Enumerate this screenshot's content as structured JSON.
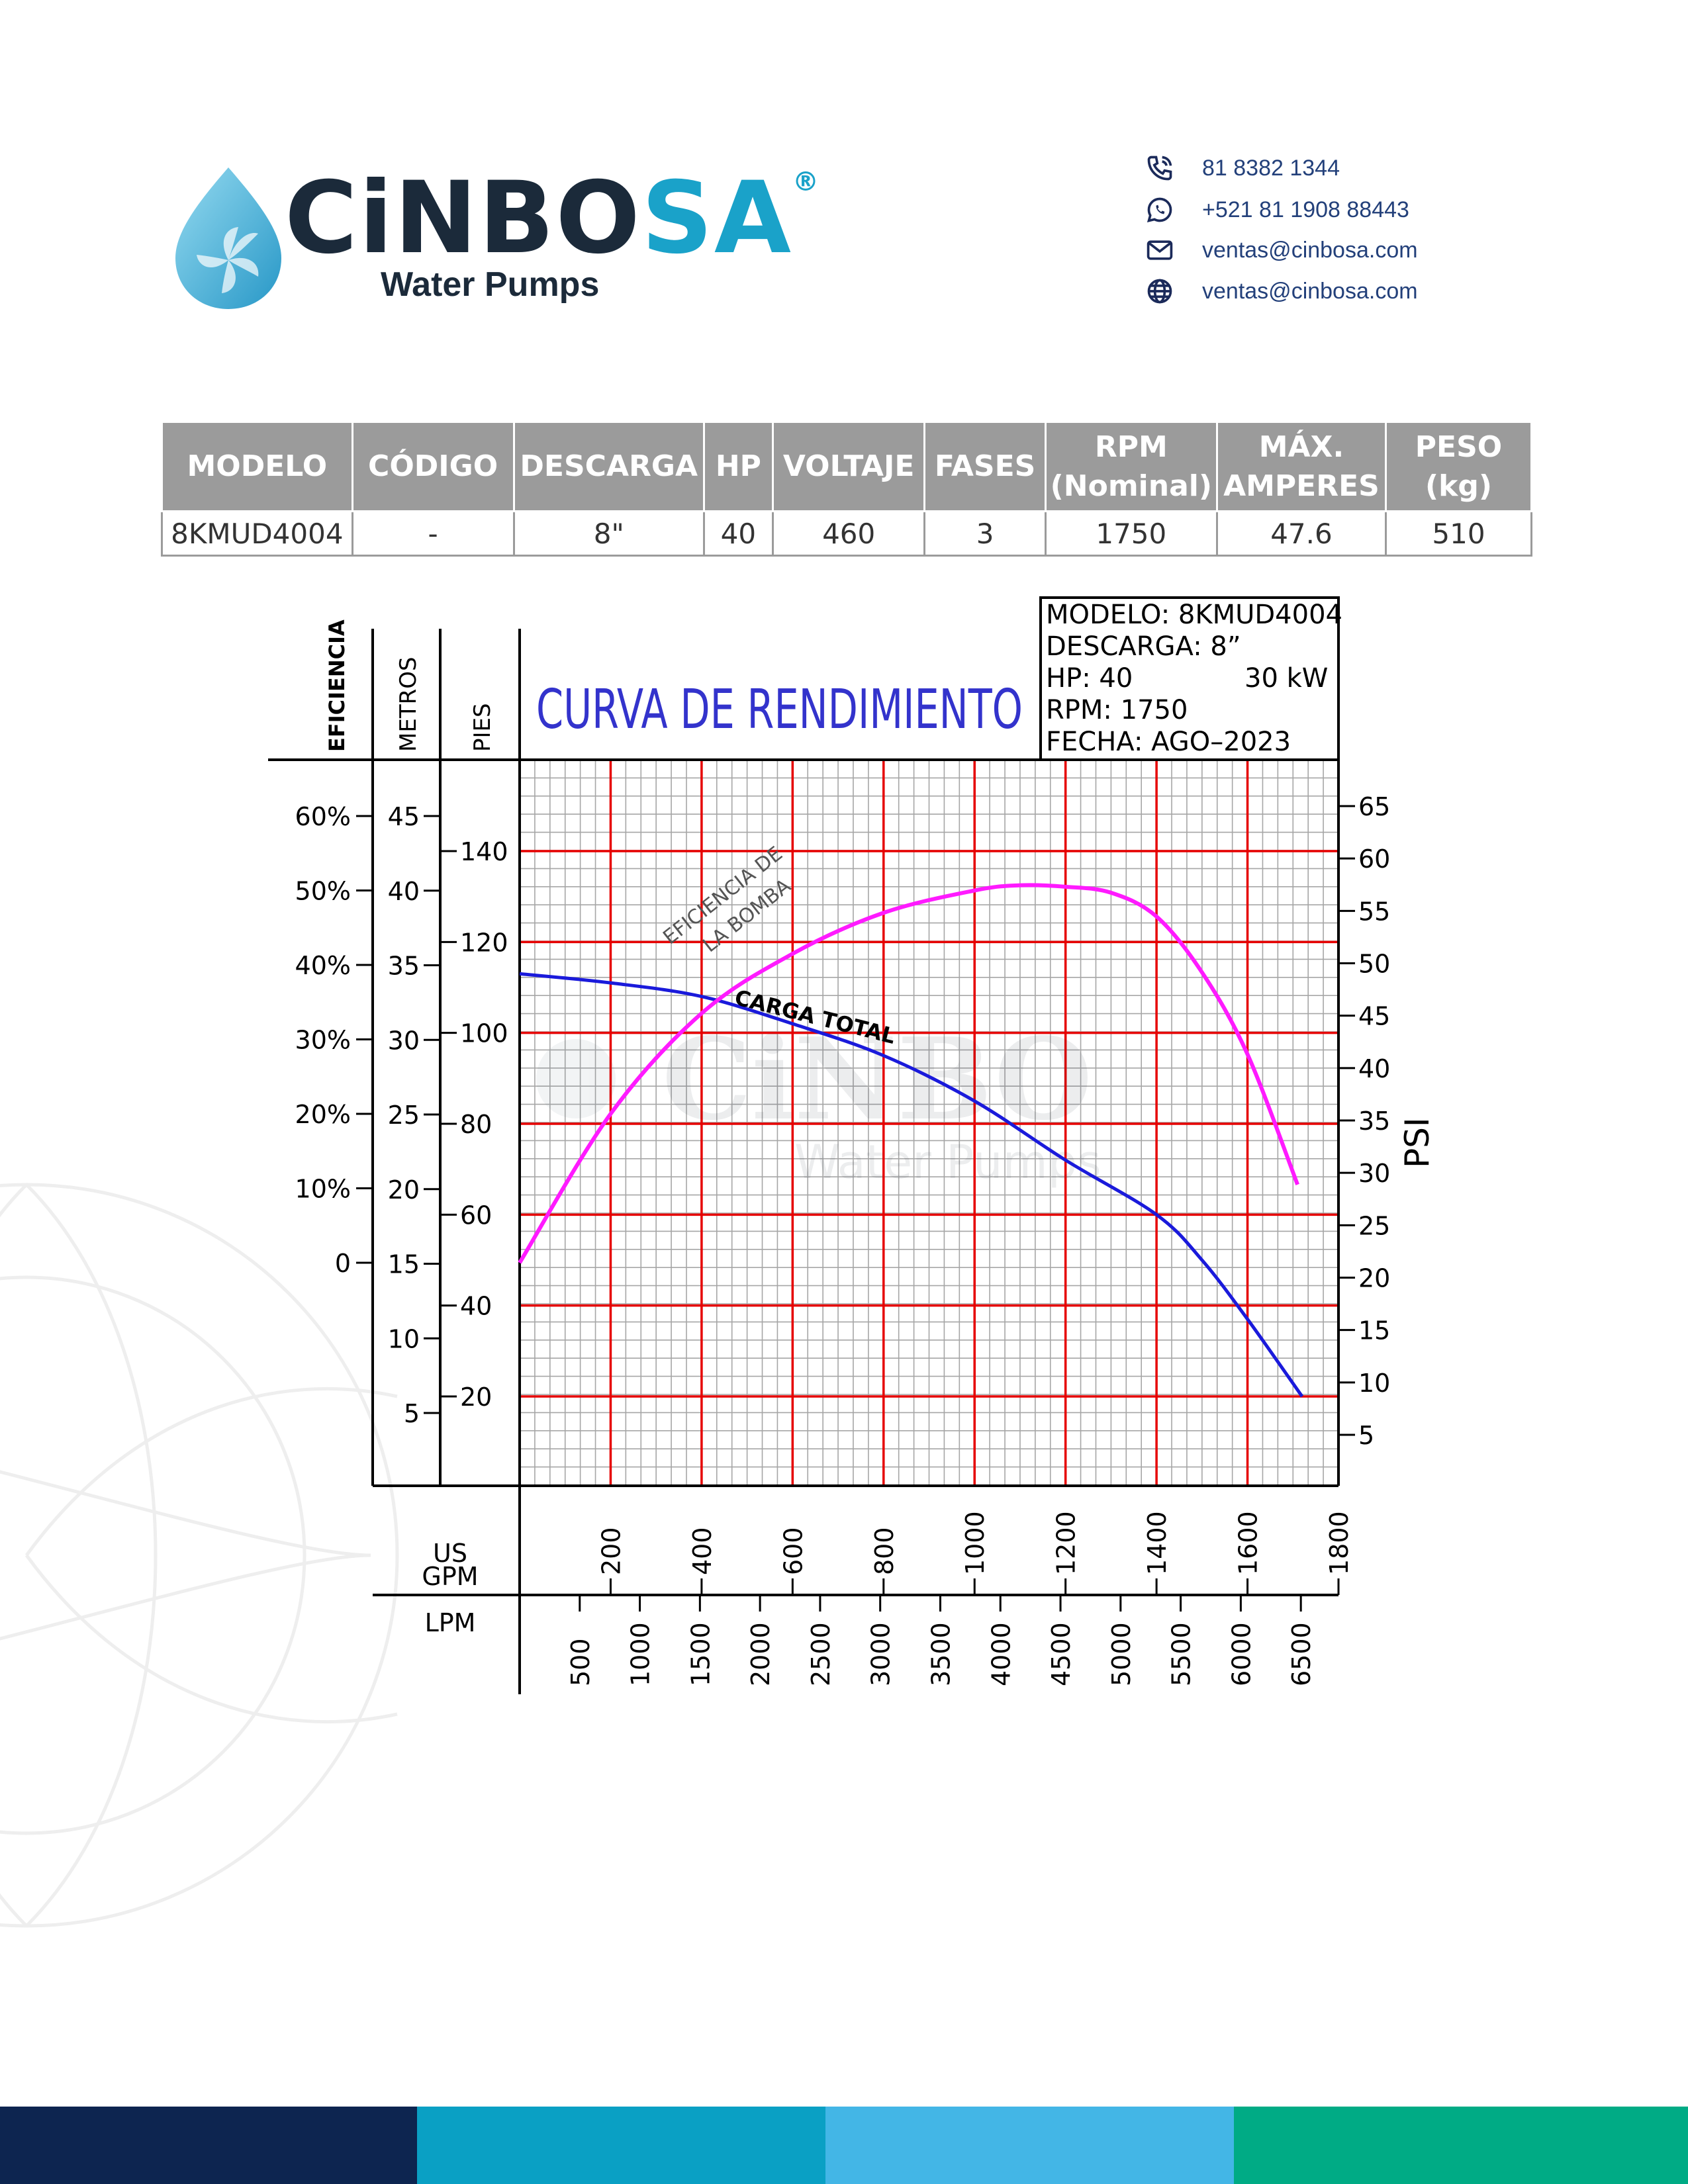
{
  "brand": {
    "name_dark": "CiNBO",
    "name_blue": "SA",
    "registered": "®",
    "tagline": "Water Pumps"
  },
  "contacts": [
    {
      "icon": "phone-icon",
      "text": "81 8382 1344"
    },
    {
      "icon": "whatsapp-icon",
      "text": "+521 81 1908 88443"
    },
    {
      "icon": "mail-icon",
      "text": "ventas@cinbosa.com"
    },
    {
      "icon": "globe-icon",
      "text": "ventas@cinbosa.com"
    }
  ],
  "spec_table": {
    "headers": [
      "MODELO",
      "CÓDIGO",
      "DESCARGA",
      "HP",
      "VOLTAJE",
      "FASES",
      "RPM\n(Nominal)",
      "MÁX.\nAMPERES",
      "PESO\n(kg)"
    ],
    "row": [
      "8KMUD4004",
      "-",
      "8\"",
      "40",
      "460",
      "3",
      "1750",
      "47.6",
      "510"
    ]
  },
  "chart_info": {
    "lines": [
      "MODELO: 8KMUD4004",
      "DESCARGA: 8”",
      "HP: 40",
      "RPM: 1750",
      "FECHA: AGO–2023"
    ],
    "kw": "30 kW"
  },
  "colors": {
    "efficiency": "#ff1aff",
    "head": "#1a1adb",
    "major_grid": "#e60000",
    "minor_grid": "#a6a6a6",
    "footer": [
      "#0d2550",
      "#0aa0c4",
      "#43b6e6",
      "#00ab85"
    ]
  },
  "chart_data": {
    "type": "line",
    "title": "CURVA DE RENDIMIENTO",
    "axes": {
      "eficiencia": {
        "label": "EFICIENCIA",
        "ticks": [
          "0",
          "10%",
          "20%",
          "30%",
          "40%",
          "50%",
          "60%"
        ]
      },
      "metros": {
        "label": "METROS",
        "ticks": [
          "5",
          "10",
          "15",
          "20",
          "25",
          "30",
          "35",
          "40",
          "45"
        ]
      },
      "pies": {
        "label": "PIES",
        "ticks": [
          "20",
          "40",
          "60",
          "80",
          "100",
          "120",
          "140"
        ]
      },
      "psi": {
        "label": "PSI",
        "ticks": [
          "5",
          "10",
          "15",
          "20",
          "25",
          "30",
          "35",
          "40",
          "45",
          "50",
          "55",
          "60",
          "65"
        ]
      },
      "gpm": {
        "label": "US\nGPM",
        "ticks": [
          "200",
          "400",
          "600",
          "800",
          "1000",
          "1200",
          "1400",
          "1600",
          "1800"
        ]
      },
      "lpm": {
        "label": "LPM",
        "ticks": [
          "500",
          "1000",
          "1500",
          "2000",
          "2500",
          "3000",
          "3500",
          "4000",
          "4500",
          "5000",
          "5500",
          "6000",
          "6500"
        ]
      }
    },
    "x_unit": "GPM",
    "xlim": [
      0,
      1800
    ],
    "series": [
      {
        "name": "CARGA TOTAL",
        "y_unit": "PIES",
        "ylim": [
          0,
          160
        ],
        "points": [
          [
            0,
            113
          ],
          [
            200,
            111
          ],
          [
            400,
            108
          ],
          [
            600,
            102
          ],
          [
            800,
            95
          ],
          [
            1000,
            85
          ],
          [
            1200,
            72
          ],
          [
            1400,
            60
          ],
          [
            1500,
            50
          ],
          [
            1600,
            37
          ],
          [
            1720,
            20
          ]
        ]
      },
      {
        "name": "EFICIENCIA DE\nLA BOMBA",
        "y_unit": "%",
        "ylim": [
          0,
          75
        ],
        "points": [
          [
            0,
            0
          ],
          [
            200,
            20
          ],
          [
            400,
            33.5
          ],
          [
            600,
            41.5
          ],
          [
            800,
            47
          ],
          [
            1000,
            50
          ],
          [
            1100,
            50.7
          ],
          [
            1200,
            50.5
          ],
          [
            1300,
            49.7
          ],
          [
            1400,
            46.5
          ],
          [
            1500,
            39
          ],
          [
            1600,
            28
          ],
          [
            1710,
            10.5
          ]
        ]
      }
    ],
    "grid": true
  }
}
